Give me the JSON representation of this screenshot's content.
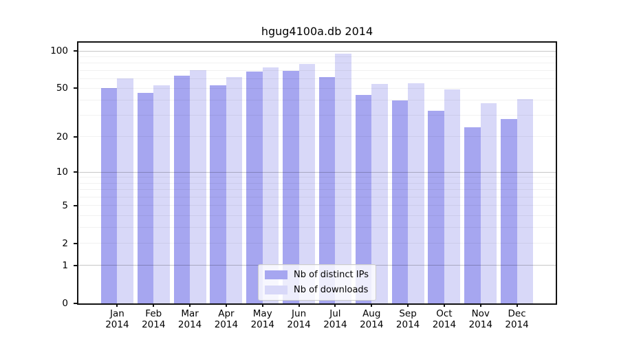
{
  "chart_data": {
    "type": "bar",
    "title": "hgug4100a.db 2014",
    "categories": [
      "Jan 2014",
      "Feb 2014",
      "Mar 2014",
      "Apr 2014",
      "May 2014",
      "Jun 2014",
      "Jul 2014",
      "Aug 2014",
      "Sep 2014",
      "Oct 2014",
      "Nov 2014",
      "Dec 2014"
    ],
    "series": [
      {
        "name": "Nb of distinct IPs",
        "color": "#a6a6f0",
        "values": [
          50,
          46,
          63,
          53,
          68,
          69,
          62,
          44,
          40,
          33,
          24,
          28
        ]
      },
      {
        "name": "Nb of downloads",
        "color": "#d8d8f8",
        "values": [
          60,
          53,
          70,
          62,
          74,
          79,
          95,
          54,
          55,
          49,
          38,
          41
        ]
      }
    ],
    "y_axis": {
      "scale": "log1p",
      "tick_labels": [
        0,
        1,
        2,
        5,
        10,
        20,
        50,
        100
      ],
      "major_gridlines": [
        1,
        10,
        100
      ],
      "minor_gridlines": [
        2,
        3,
        4,
        5,
        6,
        7,
        8,
        9,
        20,
        30,
        40,
        50,
        60,
        70,
        80,
        90
      ],
      "top_value": 100
    },
    "x_axis": {
      "tick_position": "group-center"
    },
    "legend": {
      "position": "lower center"
    },
    "colors": {
      "spine": "#121212",
      "major_grid": "rgba(0,0,0,0.22)",
      "minor_grid": "rgba(0,0,0,0.055)"
    }
  }
}
